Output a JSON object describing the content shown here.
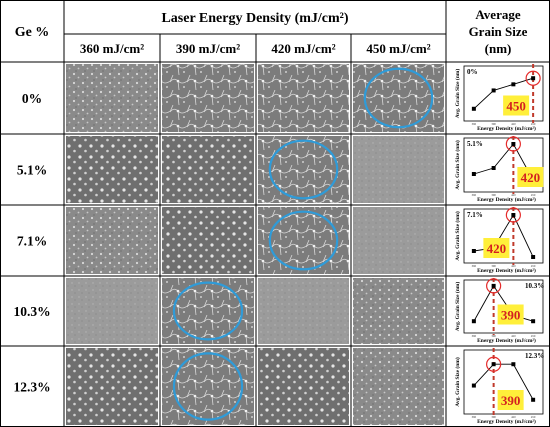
{
  "table": {
    "header": {
      "row_label": "Ge %",
      "group_label": "Laser Energy Density (mJ/cm²)",
      "right_label_lines": [
        "Average",
        "Grain Size",
        "(nm)"
      ],
      "columns": [
        "360 mJ/cm²",
        "390 mJ/cm²",
        "420 mJ/cm²",
        "450 mJ/cm²"
      ]
    },
    "rows": [
      {
        "label": "0%",
        "highlight_column": 3
      },
      {
        "label": "5.1%",
        "highlight_column": 2
      },
      {
        "label": "7.1%",
        "highlight_column": 2
      },
      {
        "label": "10.3%",
        "highlight_column": 1
      },
      {
        "label": "12.3%",
        "highlight_column": 1
      }
    ]
  },
  "chart_data": [
    {
      "type": "line",
      "title": "0%",
      "peak_label": "450",
      "x": [
        360,
        390,
        420,
        450
      ],
      "values": [
        2,
        5,
        6,
        7
      ],
      "xlabel": "Energy Density (mJ/cm²)",
      "ylabel": "Avg. Grain Size (nm)",
      "peak_index": 3
    },
    {
      "type": "line",
      "title": "5.1%",
      "peak_label": "420",
      "x": [
        360,
        390,
        420,
        450
      ],
      "values": [
        3,
        4,
        8,
        2
      ],
      "xlabel": "Energy Density (mJ/cm²)",
      "ylabel": "Avg. Grain Size (nm)",
      "peak_index": 2
    },
    {
      "type": "line",
      "title": "7.1%",
      "peak_label": "420",
      "x": [
        360,
        390,
        420,
        450
      ],
      "values": [
        2,
        2.5,
        8,
        1
      ],
      "xlabel": "Energy Density (mJ/cm²)",
      "ylabel": "Avg. Grain Size (nm)",
      "peak_index": 2
    },
    {
      "type": "line",
      "title": "10.3%",
      "peak_label": "390",
      "x": [
        360,
        390,
        420,
        450
      ],
      "values": [
        2,
        8,
        3,
        2
      ],
      "xlabel": "Energy Density (mJ/cm²)",
      "ylabel": "Avg. Grain Size (nm)",
      "peak_index": 1
    },
    {
      "type": "line",
      "title": "12.3%",
      "peak_label": "390",
      "x": [
        360,
        390,
        420,
        450
      ],
      "values": [
        4,
        7,
        7,
        2
      ],
      "xlabel": "Energy Density (mJ/cm²)",
      "ylabel": "Avg. Grain Size (nm)",
      "peak_index": 1
    }
  ],
  "colors": {
    "highlight_circle": "#2f9bd8",
    "peak_marker": "#e52b2b",
    "peak_line": "#c0392b",
    "label_box": "#ffef3a",
    "label_text": "#d42020"
  }
}
